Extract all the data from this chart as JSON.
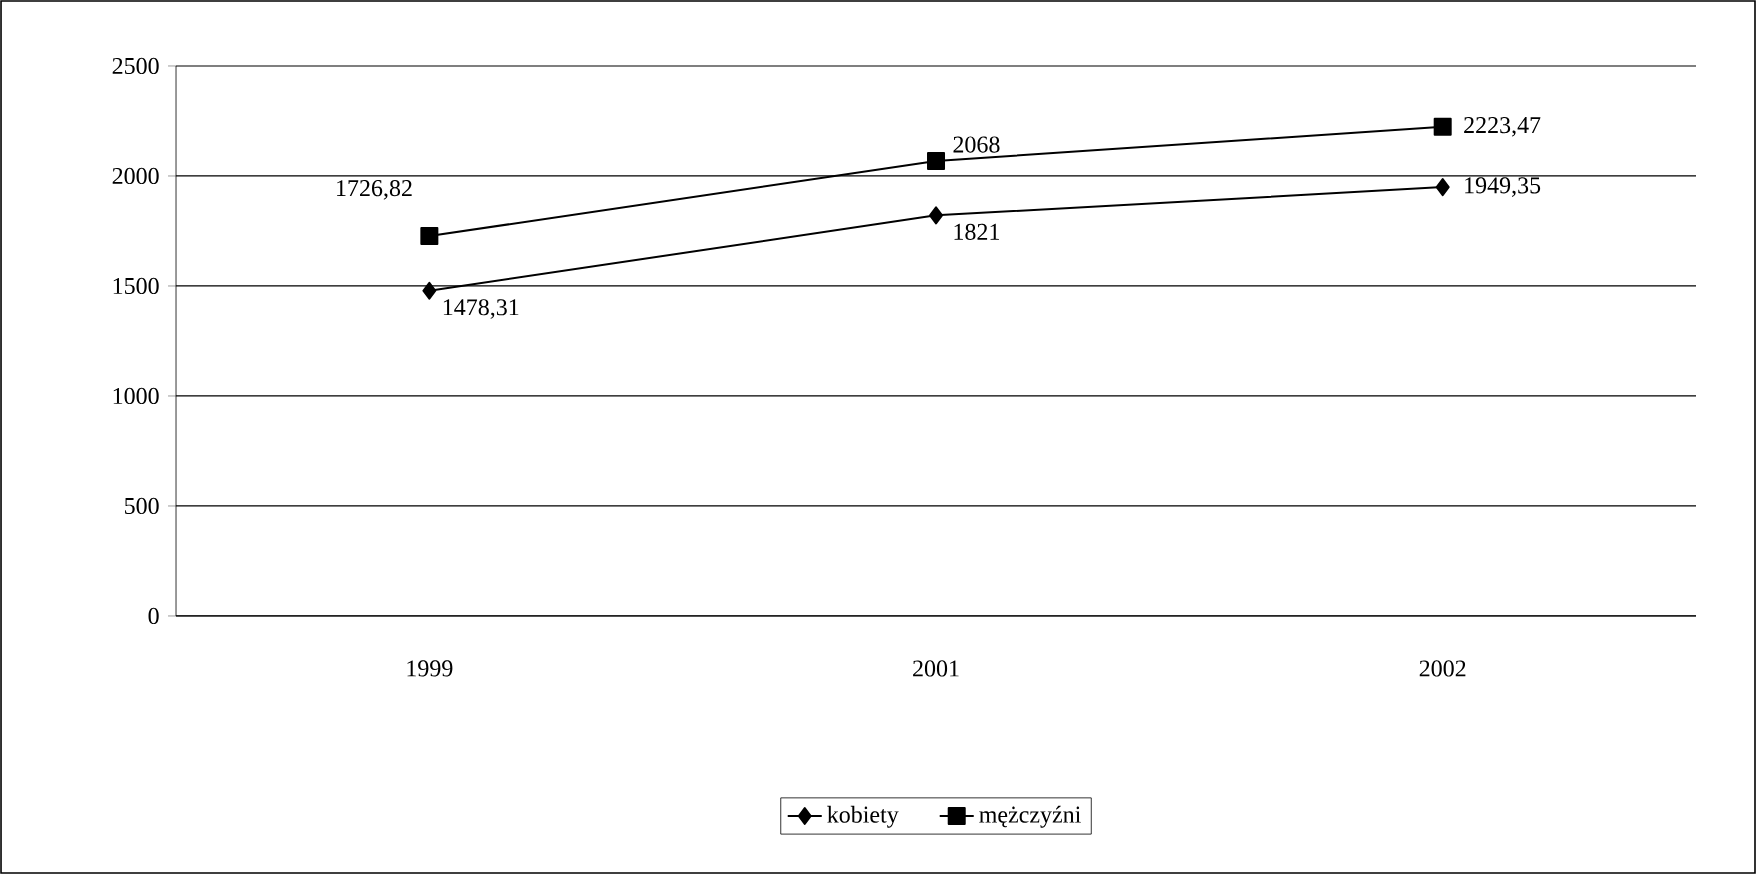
{
  "chart_data": {
    "type": "line",
    "categories": [
      "1999",
      "2001",
      "2002"
    ],
    "series": [
      {
        "name": "kobiety",
        "color": "#000000",
        "marker": "diamond",
        "values": [
          1478.31,
          1821,
          1949.35
        ],
        "value_labels": [
          "1478,31",
          "1821",
          "1949,35"
        ]
      },
      {
        "name": "mężczyźni",
        "color": "#000000",
        "marker": "square",
        "values": [
          1726.82,
          2068,
          2223.47
        ],
        "value_labels": [
          "1726,82",
          "2068",
          "2223,47"
        ]
      }
    ],
    "ylim": [
      0,
      2500
    ],
    "yticks": [
      0,
      500,
      1000,
      1500,
      2000,
      2500
    ],
    "grid": "y",
    "legend": "bottom"
  }
}
